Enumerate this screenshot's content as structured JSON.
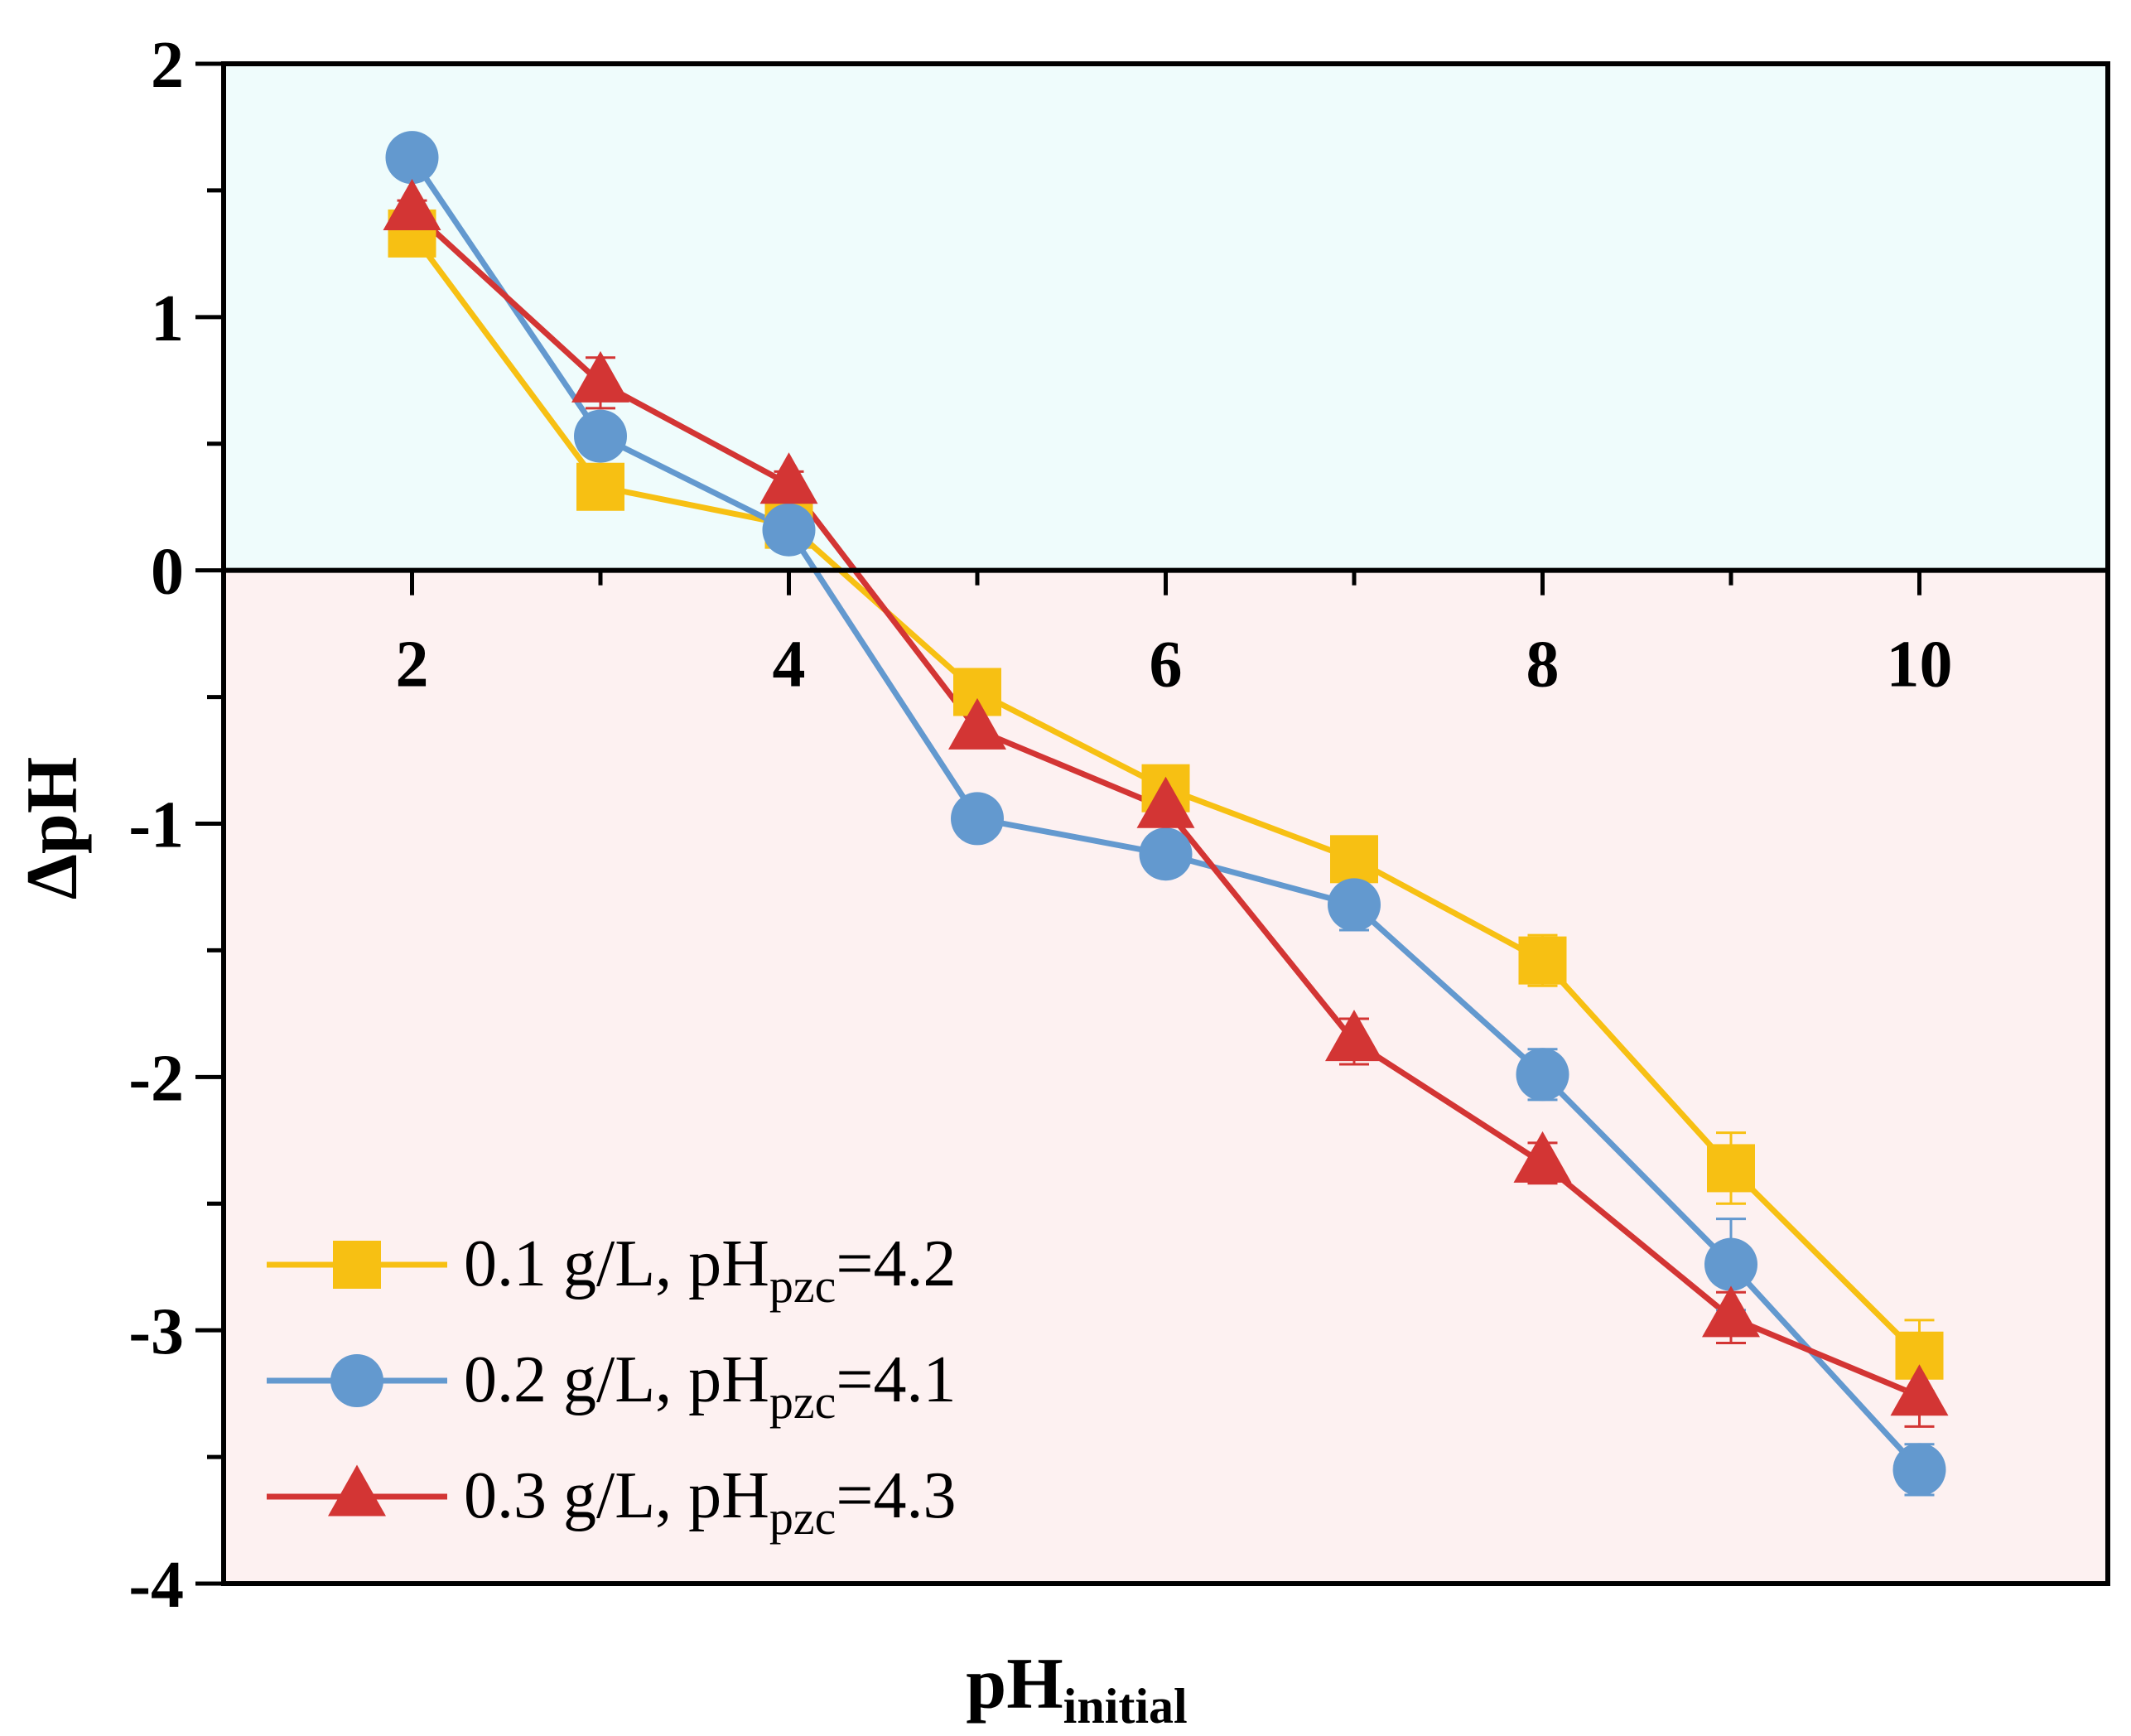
{
  "chart_data": {
    "type": "line",
    "xlabel": "pH",
    "xlabel_sub": "initial",
    "ylabel": "ΔpH",
    "xlim": [
      1,
      11
    ],
    "ylim": [
      -4,
      2
    ],
    "x": [
      2,
      3,
      4,
      5,
      6,
      7,
      8,
      9,
      10
    ],
    "x_ticks": [
      2,
      4,
      6,
      8,
      10
    ],
    "x_tick_labels": [
      "2",
      "4",
      "6",
      "8",
      "10"
    ],
    "y_ticks": [
      2,
      1,
      0,
      -1,
      -2,
      -3,
      -4
    ],
    "y_tick_labels": [
      "2",
      "1",
      "0",
      "-1",
      "-2",
      "-3",
      "-4"
    ],
    "regions": {
      "positive_color": "#effcfc",
      "negative_color": "#fdf1f1"
    },
    "legend_position": "bottom-left",
    "series": [
      {
        "name": "0.1 g/L, pH",
        "name_sub": "pzc",
        "name_suffix": "=4.2",
        "color": "#f7c013",
        "marker": "square",
        "values": [
          1.33,
          0.33,
          0.18,
          -0.48,
          -0.86,
          -1.14,
          -1.54,
          -2.36,
          -3.1
        ],
        "errors": [
          0.04,
          0.05,
          0.04,
          0.05,
          0.05,
          0.05,
          0.1,
          0.14,
          0.14
        ]
      },
      {
        "name": "0.2 g/L, pH",
        "name_sub": "pzc",
        "name_suffix": "=4.1",
        "color": "#6399cf",
        "marker": "circle",
        "values": [
          1.63,
          0.53,
          0.16,
          -0.98,
          -1.12,
          -1.32,
          -1.99,
          -2.74,
          -3.55
        ],
        "errors": [
          0.03,
          0.06,
          0.04,
          0.06,
          0.05,
          0.1,
          0.1,
          0.18,
          0.1
        ]
      },
      {
        "name": "0.3 g/L, pH",
        "name_sub": "pzc",
        "name_suffix": "=4.3",
        "color": "#d33534",
        "marker": "triangle",
        "values": [
          1.42,
          0.74,
          0.34,
          -0.63,
          -0.94,
          -1.86,
          -2.34,
          -2.95,
          -3.26
        ],
        "errors": [
          0.04,
          0.1,
          0.05,
          0.07,
          0.06,
          0.09,
          0.08,
          0.1,
          0.12
        ]
      }
    ]
  }
}
